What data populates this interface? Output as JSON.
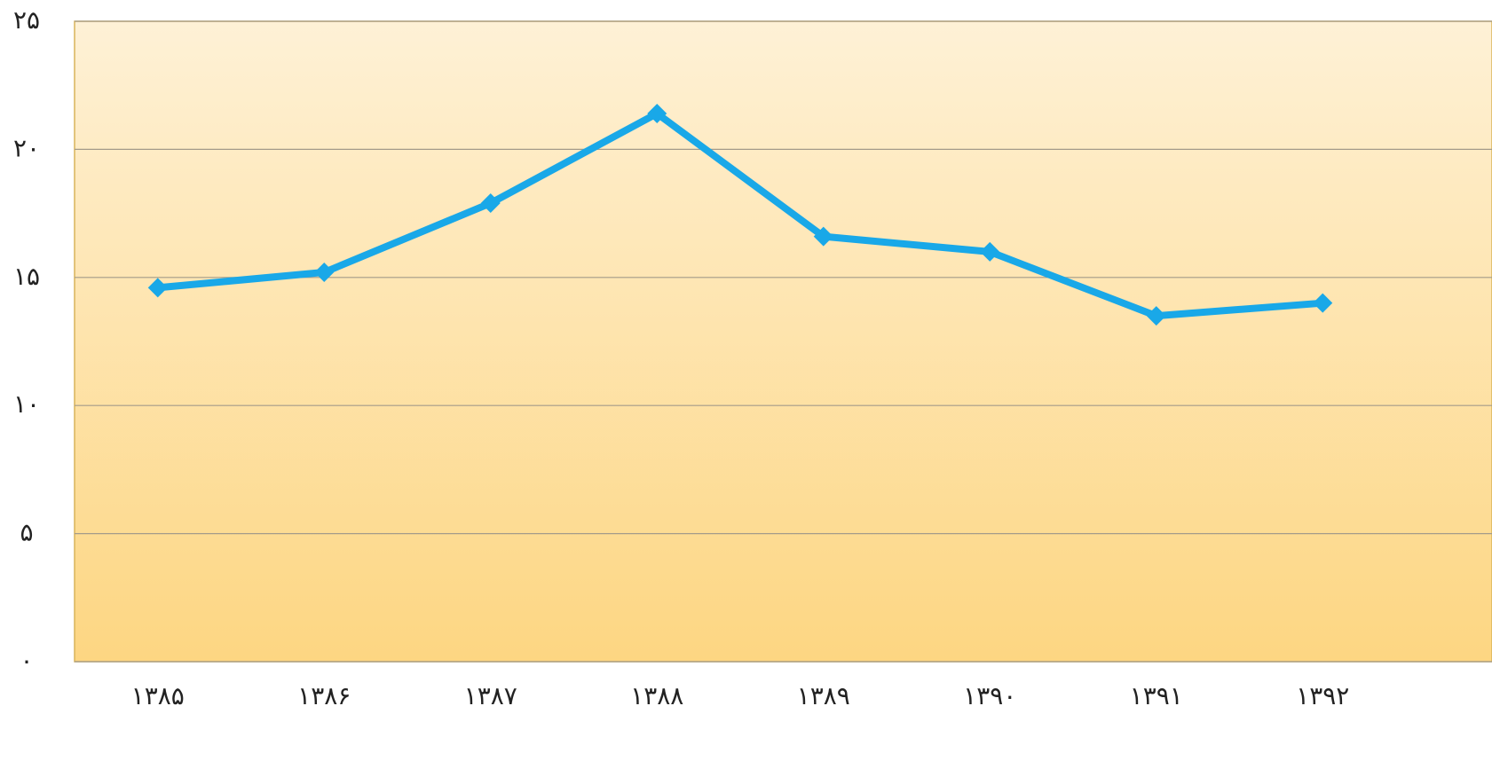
{
  "chart_data": {
    "type": "line",
    "categories": [
      "۱۳۸۵",
      "۱۳۸۶",
      "۱۳۸۷",
      "۱۳۸۸",
      "۱۳۸۹",
      "۱۳۹۰",
      "۱۳۹۱",
      "۱۳۹۲"
    ],
    "values": [
      14.6,
      15.2,
      17.9,
      21.4,
      16.6,
      16.0,
      13.5,
      14.0
    ],
    "color": "#19a8e8",
    "ylim": [
      0,
      25
    ],
    "yticks": [
      {
        "value": 0,
        "label": "۰"
      },
      {
        "value": 5,
        "label": "۵"
      },
      {
        "value": 10,
        "label": "۱۰"
      },
      {
        "value": 15,
        "label": "۱۵"
      },
      {
        "value": 20,
        "label": "۲۰"
      },
      {
        "value": 25,
        "label": "۲۵"
      }
    ],
    "grid": true
  }
}
